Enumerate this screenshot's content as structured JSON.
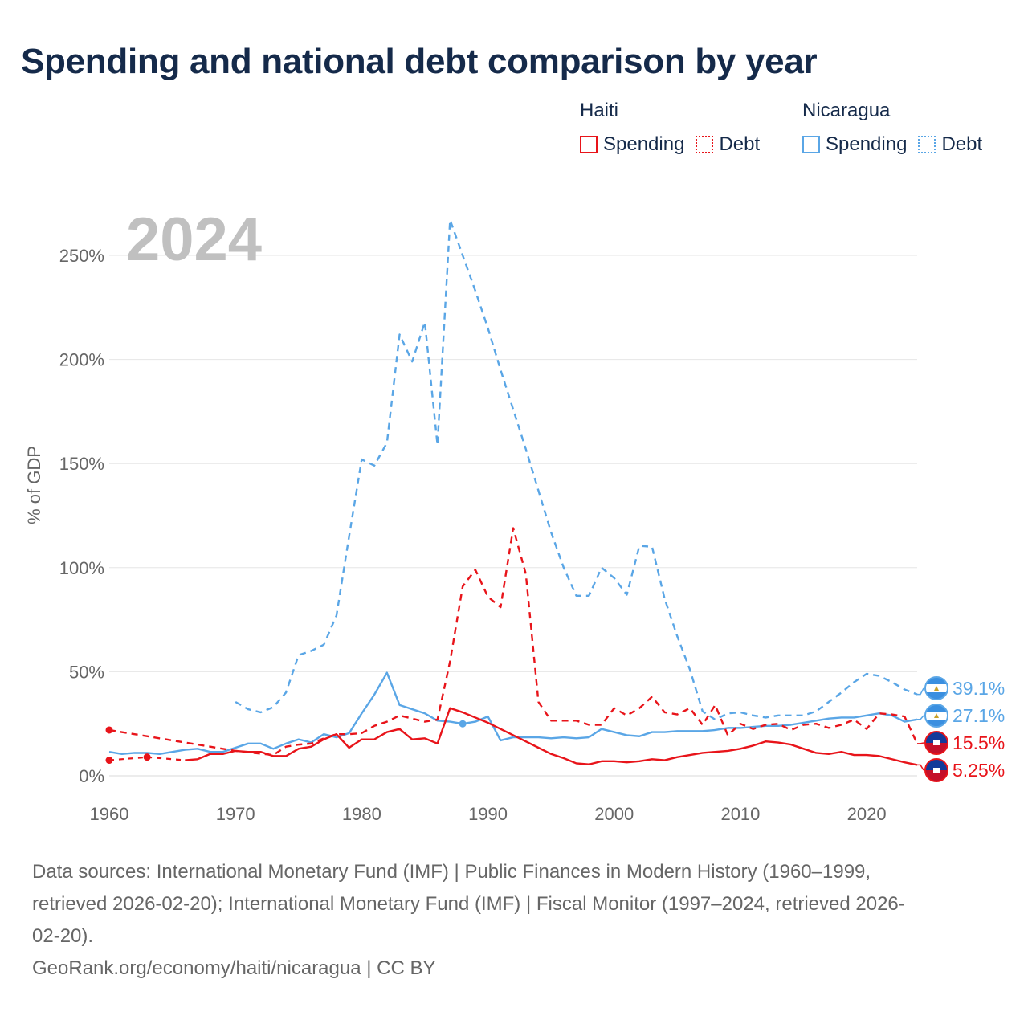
{
  "title": "Spending and national debt comparison by year",
  "legend": {
    "groups": [
      {
        "name": "Haiti",
        "color": "#e8141a",
        "items": [
          {
            "label": "Spending",
            "style": "solid"
          },
          {
            "label": "Debt",
            "style": "dotted"
          }
        ]
      },
      {
        "name": "Nicaragua",
        "color": "#5aa6e6",
        "items": [
          {
            "label": "Spending",
            "style": "solid"
          },
          {
            "label": "Debt",
            "style": "dotted"
          }
        ]
      }
    ]
  },
  "chart_data": {
    "type": "line",
    "year_label": "2024",
    "ylabel": "% of GDP",
    "xlim": [
      1960,
      2025
    ],
    "ylim": [
      0,
      275
    ],
    "x_ticks": [
      1960,
      1970,
      1980,
      1990,
      2000,
      2010,
      2020
    ],
    "y_ticks": [
      {
        "value": 0,
        "label": "0%"
      },
      {
        "value": 50,
        "label": "50%"
      },
      {
        "value": 100,
        "label": "100%"
      },
      {
        "value": 150,
        "label": "150%"
      },
      {
        "value": 200,
        "label": "200%"
      },
      {
        "value": 250,
        "label": "250%"
      }
    ],
    "series": [
      {
        "name": "Nicaragua Debt",
        "country": "Nicaragua",
        "color": "#5aa6e6",
        "dashed": true,
        "end_label": "39.1%",
        "points": [
          [
            1970,
            35.5
          ],
          [
            1971,
            32
          ],
          [
            1972,
            30.5
          ],
          [
            1973,
            33
          ],
          [
            1974,
            40
          ],
          [
            1975,
            58
          ],
          [
            1976,
            60
          ],
          [
            1977,
            63
          ],
          [
            1978,
            77
          ],
          [
            1979,
            115
          ],
          [
            1980,
            152
          ],
          [
            1981,
            149
          ],
          [
            1982,
            160
          ],
          [
            1983,
            212
          ],
          [
            1984,
            199
          ],
          [
            1985,
            218
          ],
          [
            1986,
            159
          ],
          [
            1987,
            267
          ],
          [
            1988,
            250
          ],
          [
            1989,
            233
          ],
          [
            1990,
            215
          ],
          [
            1991,
            195
          ],
          [
            1992,
            176
          ],
          [
            1993,
            157
          ],
          [
            1994,
            137
          ],
          [
            1995,
            117
          ],
          [
            1996,
            100
          ],
          [
            1997,
            86.5
          ],
          [
            1998,
            86.5
          ],
          [
            1999,
            100
          ],
          [
            2000,
            95
          ],
          [
            2001,
            87
          ],
          [
            2002,
            110.5
          ],
          [
            2003,
            110
          ],
          [
            2004,
            85
          ],
          [
            2005,
            67
          ],
          [
            2006,
            51
          ],
          [
            2007,
            31
          ],
          [
            2008,
            27
          ],
          [
            2009,
            30
          ],
          [
            2010,
            30.5
          ],
          [
            2011,
            29
          ],
          [
            2012,
            28
          ],
          [
            2013,
            29
          ],
          [
            2014,
            29
          ],
          [
            2015,
            29
          ],
          [
            2016,
            31
          ],
          [
            2017,
            35.5
          ],
          [
            2018,
            40
          ],
          [
            2019,
            45
          ],
          [
            2020,
            49
          ],
          [
            2021,
            48
          ],
          [
            2022,
            45
          ],
          [
            2023,
            41.5
          ],
          [
            2024,
            39.1
          ]
        ]
      },
      {
        "name": "Nicaragua Spending",
        "country": "Nicaragua",
        "color": "#5aa6e6",
        "dashed": false,
        "end_label": "27.1%",
        "points": [
          [
            1960,
            11.5
          ],
          [
            1961,
            10.5
          ],
          [
            1962,
            11
          ],
          [
            1963,
            11
          ],
          [
            1964,
            10.5
          ],
          [
            1965,
            11.5
          ],
          [
            1966,
            12.5
          ],
          [
            1967,
            13
          ],
          [
            1968,
            11.5
          ],
          [
            1969,
            11.5
          ],
          [
            1970,
            13.5
          ],
          [
            1971,
            15.5
          ],
          [
            1972,
            15.5
          ],
          [
            1973,
            13
          ],
          [
            1974,
            15.5
          ],
          [
            1975,
            17.5
          ],
          [
            1976,
            16
          ],
          [
            1977,
            20
          ],
          [
            1978,
            18.5
          ],
          [
            1979,
            20.5
          ],
          [
            1980,
            30
          ],
          [
            1981,
            39
          ],
          [
            1982,
            49.5
          ],
          [
            1983,
            34
          ],
          [
            1984,
            32
          ],
          [
            1985,
            30
          ],
          [
            1986,
            26.5
          ],
          [
            1987,
            26
          ],
          [
            1988,
            25
          ],
          [
            1989,
            26
          ],
          [
            1990,
            28.5
          ],
          [
            1991,
            17
          ],
          [
            1992,
            18.5
          ],
          [
            1993,
            18.5
          ],
          [
            1994,
            18.5
          ],
          [
            1995,
            18
          ],
          [
            1996,
            18.5
          ],
          [
            1997,
            18
          ],
          [
            1998,
            18.5
          ],
          [
            1999,
            22.5
          ],
          [
            2000,
            21
          ],
          [
            2001,
            19.5
          ],
          [
            2002,
            19
          ],
          [
            2003,
            21
          ],
          [
            2004,
            21
          ],
          [
            2005,
            21.5
          ],
          [
            2006,
            21.5
          ],
          [
            2007,
            21.5
          ],
          [
            2008,
            22
          ],
          [
            2009,
            23
          ],
          [
            2010,
            23
          ],
          [
            2011,
            23.5
          ],
          [
            2012,
            24
          ],
          [
            2013,
            24
          ],
          [
            2014,
            24.5
          ],
          [
            2015,
            25.5
          ],
          [
            2016,
            26.5
          ],
          [
            2017,
            27.5
          ],
          [
            2018,
            28
          ],
          [
            2019,
            28
          ],
          [
            2020,
            29
          ],
          [
            2021,
            30
          ],
          [
            2022,
            29
          ],
          [
            2023,
            26
          ],
          [
            2024,
            27.1
          ]
        ]
      },
      {
        "name": "Haiti Debt",
        "country": "Haiti",
        "color": "#e8141a",
        "dashed": true,
        "end_label": "15.5%",
        "points": [
          [
            1960,
            22
          ],
          [
            1970,
            12
          ],
          [
            1973,
            10
          ],
          [
            1974,
            14
          ],
          [
            1975,
            15
          ],
          [
            1976,
            15.5
          ],
          [
            1977,
            18
          ],
          [
            1978,
            20
          ],
          [
            1979,
            20
          ],
          [
            1980,
            20.5
          ],
          [
            1981,
            24
          ],
          [
            1982,
            26
          ],
          [
            1983,
            29
          ],
          [
            1984,
            27.5
          ],
          [
            1985,
            26
          ],
          [
            1986,
            27
          ],
          [
            1987,
            55
          ],
          [
            1988,
            91
          ],
          [
            1989,
            99
          ],
          [
            1990,
            86
          ],
          [
            1991,
            81
          ],
          [
            1992,
            119
          ],
          [
            1993,
            97
          ],
          [
            1994,
            35.5
          ],
          [
            1995,
            26.5
          ],
          [
            1996,
            26.5
          ],
          [
            1997,
            26.5
          ],
          [
            1998,
            24.5
          ],
          [
            1999,
            24.5
          ],
          [
            2000,
            32.5
          ],
          [
            2001,
            29
          ],
          [
            2002,
            32.5
          ],
          [
            2003,
            38
          ],
          [
            2004,
            30.5
          ],
          [
            2005,
            29.5
          ],
          [
            2006,
            32.5
          ],
          [
            2007,
            24.5
          ],
          [
            2008,
            34
          ],
          [
            2009,
            19.5
          ],
          [
            2010,
            25
          ],
          [
            2011,
            22.5
          ],
          [
            2012,
            24.5
          ],
          [
            2013,
            25
          ],
          [
            2014,
            22
          ],
          [
            2015,
            24.5
          ],
          [
            2016,
            25
          ],
          [
            2017,
            23
          ],
          [
            2018,
            24.5
          ],
          [
            2019,
            27
          ],
          [
            2020,
            22.5
          ],
          [
            2021,
            30
          ],
          [
            2022,
            29.5
          ],
          [
            2023,
            28.5
          ],
          [
            2024,
            15.5
          ]
        ]
      },
      {
        "name": "Haiti Spending",
        "country": "Haiti",
        "color": "#e8141a",
        "dashed": false,
        "end_label": "5.25%",
        "points": [
          [
            1960,
            7.5
          ],
          [
            1963,
            9
          ],
          [
            1966,
            7.5
          ],
          [
            1967,
            8
          ],
          [
            1968,
            10.5
          ],
          [
            1969,
            10.5
          ],
          [
            1970,
            12
          ],
          [
            1971,
            11.5
          ],
          [
            1972,
            11.5
          ],
          [
            1973,
            9.5
          ],
          [
            1974,
            9.5
          ],
          [
            1975,
            13
          ],
          [
            1976,
            14
          ],
          [
            1977,
            17.5
          ],
          [
            1978,
            20
          ],
          [
            1979,
            13.5
          ],
          [
            1980,
            17.5
          ],
          [
            1981,
            17.5
          ],
          [
            1982,
            21
          ],
          [
            1983,
            22.5
          ],
          [
            1984,
            17.5
          ],
          [
            1985,
            18
          ],
          [
            1986,
            15.5
          ],
          [
            1987,
            32.5
          ],
          [
            1988,
            30.5
          ],
          [
            1989,
            28
          ],
          [
            1990,
            25.5
          ],
          [
            1991,
            22.5
          ],
          [
            1992,
            19.5
          ],
          [
            1993,
            16.5
          ],
          [
            1994,
            13.5
          ],
          [
            1995,
            10.5
          ],
          [
            1996,
            8.5
          ],
          [
            1997,
            6
          ],
          [
            1998,
            5.5
          ],
          [
            1999,
            7
          ],
          [
            2000,
            7
          ],
          [
            2001,
            6.5
          ],
          [
            2002,
            7
          ],
          [
            2003,
            8
          ],
          [
            2004,
            7.5
          ],
          [
            2005,
            9
          ],
          [
            2006,
            10
          ],
          [
            2007,
            11
          ],
          [
            2008,
            11.5
          ],
          [
            2009,
            12
          ],
          [
            2010,
            13
          ],
          [
            2011,
            14.5
          ],
          [
            2012,
            16.5
          ],
          [
            2013,
            16
          ],
          [
            2014,
            15
          ],
          [
            2015,
            13
          ],
          [
            2016,
            11
          ],
          [
            2017,
            10.5
          ],
          [
            2018,
            11.5
          ],
          [
            2019,
            10
          ],
          [
            2020,
            10
          ],
          [
            2021,
            9.5
          ],
          [
            2022,
            8
          ],
          [
            2023,
            6.5
          ],
          [
            2024,
            5.25
          ]
        ]
      }
    ],
    "dashed_segments": [
      {
        "series": "Haiti Debt",
        "from": [
          1960,
          22
        ],
        "to": [
          1970,
          12
        ]
      },
      {
        "series": "Haiti Spending",
        "from": [
          1960,
          7.5
        ],
        "to": [
          1963,
          9
        ]
      },
      {
        "series": "Haiti Spending",
        "from": [
          1963,
          9
        ],
        "to": [
          1966,
          7.5
        ]
      },
      {
        "series": "Haiti Spending",
        "from": [
          1987,
          32.5
        ],
        "to": [
          1997,
          6
        ]
      }
    ],
    "markers": [
      {
        "series": "Haiti Debt",
        "x": 1960,
        "y": 22
      },
      {
        "series": "Haiti Spending",
        "x": 1960,
        "y": 7.5
      },
      {
        "series": "Haiti Spending",
        "x": 1963,
        "y": 9
      },
      {
        "series": "Nicaragua Spending",
        "x": 1988,
        "y": 25
      }
    ]
  },
  "sources": {
    "line1": "Data sources: International Monetary Fund (IMF) | Public Finances in Modern History (1960–1999,",
    "line2": "retrieved 2026-02-20); International Monetary Fund (IMF) | Fiscal Monitor (1997–2024, retrieved 2026-",
    "line3": "02-20).",
    "credit": "GeoRank.org/economy/haiti/nicaragua | CC BY"
  }
}
